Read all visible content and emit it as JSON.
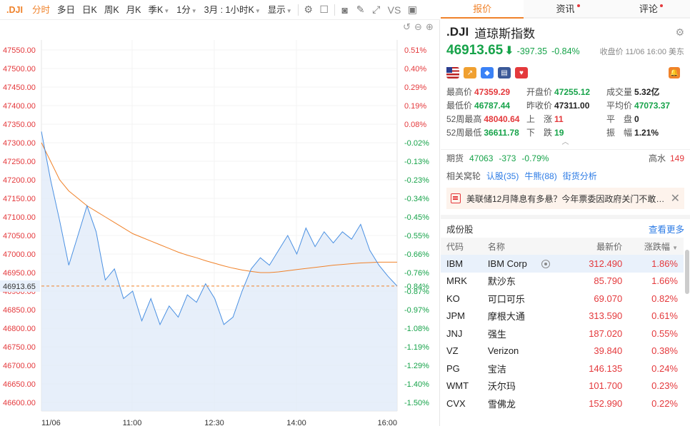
{
  "toolbar": {
    "symbol": ".DJI",
    "items": [
      "分时",
      "多日",
      "日K",
      "周K",
      "月K",
      "季K",
      "1分",
      "3月 : 1小时K",
      "显示"
    ],
    "vs": "VS"
  },
  "chart": {
    "price_ticks": [
      "47550.00",
      "47500.00",
      "47450.00",
      "47400.00",
      "47350.00",
      "47300.00",
      "47250.00",
      "47200.00",
      "47150.00",
      "47100.00",
      "47050.00",
      "47000.00",
      "46950.00",
      "46900.00",
      "46850.00",
      "46800.00",
      "46750.00",
      "46700.00",
      "46650.00",
      "46600.00"
    ],
    "pct_ticks": [
      "0.51%",
      "0.40%",
      "0.29%",
      "0.19%",
      "0.08%",
      "-0.02%",
      "-0.13%",
      "-0.23%",
      "-0.34%",
      "-0.45%",
      "-0.55%",
      "-0.66%",
      "-0.76%",
      "-0.87%",
      "-0.97%",
      "-1.08%",
      "-1.19%",
      "-1.29%",
      "-1.40%",
      "-1.50%"
    ],
    "time_ticks": [
      "11/06",
      "11:00",
      "12:30",
      "14:00",
      "16:00"
    ],
    "current_price_label": "46913.65",
    "current_pct_label": "-0.84%",
    "colors": {
      "price_line": "#4a90e2",
      "avg_line": "#f0822a",
      "up": "#e4393c",
      "down": "#17a34a"
    }
  },
  "chart_data": {
    "type": "line",
    "title": "",
    "xlabel": "",
    "ylabel": "",
    "ylim": [
      46580,
      47575
    ],
    "x": [
      "09:30",
      "09:40",
      "09:50",
      "10:00",
      "10:10",
      "10:20",
      "10:30",
      "10:40",
      "10:50",
      "11:00",
      "11:10",
      "11:20",
      "11:30",
      "11:40",
      "11:50",
      "12:00",
      "12:10",
      "12:20",
      "12:30",
      "12:40",
      "12:50",
      "13:00",
      "13:10",
      "13:20",
      "13:30",
      "13:40",
      "13:50",
      "14:00",
      "14:10",
      "14:20",
      "14:30",
      "14:40",
      "14:50",
      "15:00",
      "15:10",
      "15:20",
      "15:30",
      "15:40",
      "15:50",
      "16:00"
    ],
    "series": [
      {
        "values": [
          47330,
          47200,
          47090,
          46970,
          47050,
          47130,
          47060,
          46930,
          46960,
          46880,
          46900,
          46820,
          46880,
          46810,
          46860,
          46830,
          46890,
          46870,
          46920,
          46880,
          46810,
          46830,
          46900,
          46960,
          46990,
          46970,
          47010,
          47050,
          47000,
          47070,
          47020,
          47060,
          47030,
          47060,
          47040,
          47080,
          47010,
          46970,
          46940,
          46913.65
        ]
      },
      {
        "values": [
          47300,
          47250,
          47200,
          47170,
          47150,
          47130,
          47115,
          47100,
          47085,
          47070,
          47055,
          47045,
          47035,
          47025,
          47015,
          47005,
          46997,
          46990,
          46982,
          46975,
          46968,
          46962,
          46957,
          46953,
          46950,
          46950,
          46952,
          46955,
          46958,
          46961,
          46964,
          46967,
          46970,
          46972,
          46974,
          46976,
          46977,
          46978,
          46978,
          46978
        ]
      }
    ]
  },
  "tabs": [
    {
      "label": "报价",
      "dot": false
    },
    {
      "label": "资讯",
      "dot": true
    },
    {
      "label": "评论",
      "dot": true
    }
  ],
  "quote": {
    "code": ".DJI",
    "name": "道琼斯指数",
    "price": "46913.65",
    "change": "-397.35",
    "change_pct": "-0.84%",
    "close_info": "收盘价 11/06 16:00 美东"
  },
  "stats": [
    {
      "label": "最高价",
      "value": "47359.29",
      "color": "red"
    },
    {
      "label": "开盘价",
      "value": "47255.12",
      "color": "green"
    },
    {
      "label": "成交量",
      "value": "5.32亿",
      "color": "dark"
    },
    {
      "label": "最低价",
      "value": "46787.44",
      "color": "green"
    },
    {
      "label": "昨收价",
      "value": "47311.00",
      "color": "dark"
    },
    {
      "label": "平均价",
      "value": "47073.37",
      "color": "green"
    },
    {
      "label": "52周最高",
      "value": "48040.64",
      "color": "red"
    },
    {
      "label": "上　涨",
      "value": "11",
      "color": "red"
    },
    {
      "label": "平　盘",
      "value": "0",
      "color": "dark"
    },
    {
      "label": "52周最低",
      "value": "36611.78",
      "color": "green"
    },
    {
      "label": "下　跌",
      "value": "19",
      "color": "green"
    },
    {
      "label": "振　幅",
      "value": "1.21%",
      "color": "dark"
    }
  ],
  "futures": {
    "label": "期货",
    "price": "47063",
    "change": "-373",
    "pct": "-0.79%",
    "right_label": "高水",
    "right_value": "149"
  },
  "related": {
    "label": "相关窝轮",
    "links": [
      "认股(35)",
      "牛熊(88)",
      "街货分析"
    ]
  },
  "news": {
    "text": "美联储12月降息有多悬？今年票委因政府关门不敢…"
  },
  "components": {
    "title": "成份股",
    "more": "查看更多",
    "headers": [
      "代码",
      "名称",
      "最新价",
      "涨跌幅"
    ],
    "rows": [
      {
        "code": "IBM",
        "name": "IBM Corp",
        "price": "312.490",
        "pct": "1.86%"
      },
      {
        "code": "MRK",
        "name": "默沙东",
        "price": "85.790",
        "pct": "1.66%"
      },
      {
        "code": "KO",
        "name": "可口可乐",
        "price": "69.070",
        "pct": "0.82%"
      },
      {
        "code": "JPM",
        "name": "摩根大通",
        "price": "313.590",
        "pct": "0.61%"
      },
      {
        "code": "JNJ",
        "name": "强生",
        "price": "187.020",
        "pct": "0.55%"
      },
      {
        "code": "VZ",
        "name": "Verizon",
        "price": "39.840",
        "pct": "0.38%"
      },
      {
        "code": "PG",
        "name": "宝洁",
        "price": "146.135",
        "pct": "0.24%"
      },
      {
        "code": "WMT",
        "name": "沃尔玛",
        "price": "101.700",
        "pct": "0.23%"
      },
      {
        "code": "CVX",
        "name": "雪佛龙",
        "price": "152.990",
        "pct": "0.22%"
      }
    ]
  }
}
